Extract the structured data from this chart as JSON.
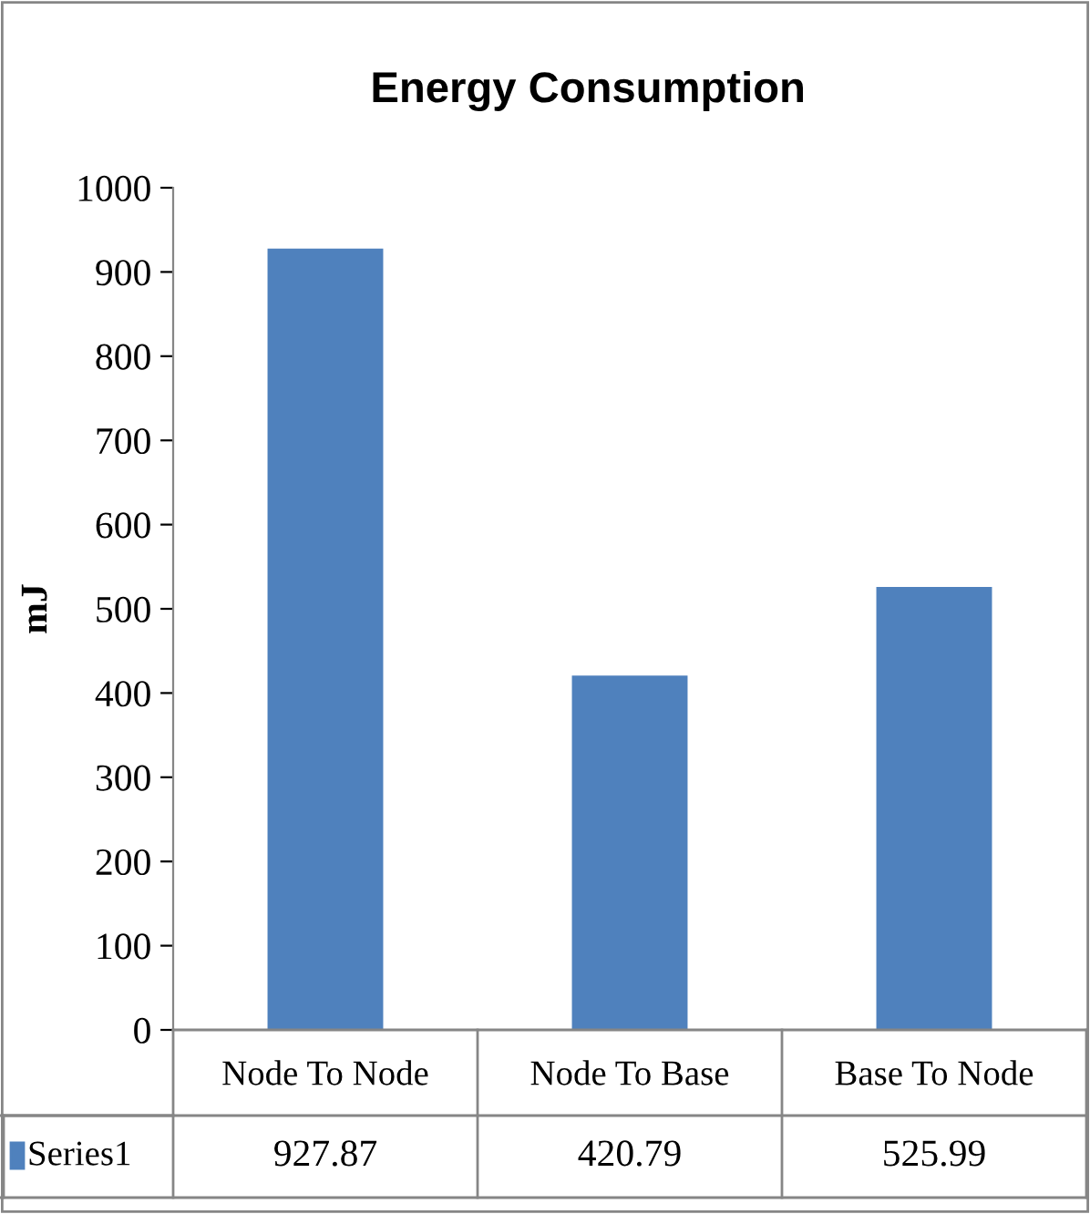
{
  "chart_data": {
    "type": "bar",
    "title": "Energy Consumption",
    "ylabel": "mJ",
    "categories": [
      "Node To Node",
      "Node To Base",
      "Base To Node"
    ],
    "series": [
      {
        "name": "Series1",
        "color": "#4f81bd",
        "values": [
          927.87,
          420.79,
          525.99
        ]
      }
    ],
    "ylim": [
      0,
      1000
    ],
    "yticks": [
      0,
      100,
      200,
      300,
      400,
      500,
      600,
      700,
      800,
      900,
      1000
    ],
    "grid": false,
    "legend": "bottom",
    "data_labels": true
  }
}
